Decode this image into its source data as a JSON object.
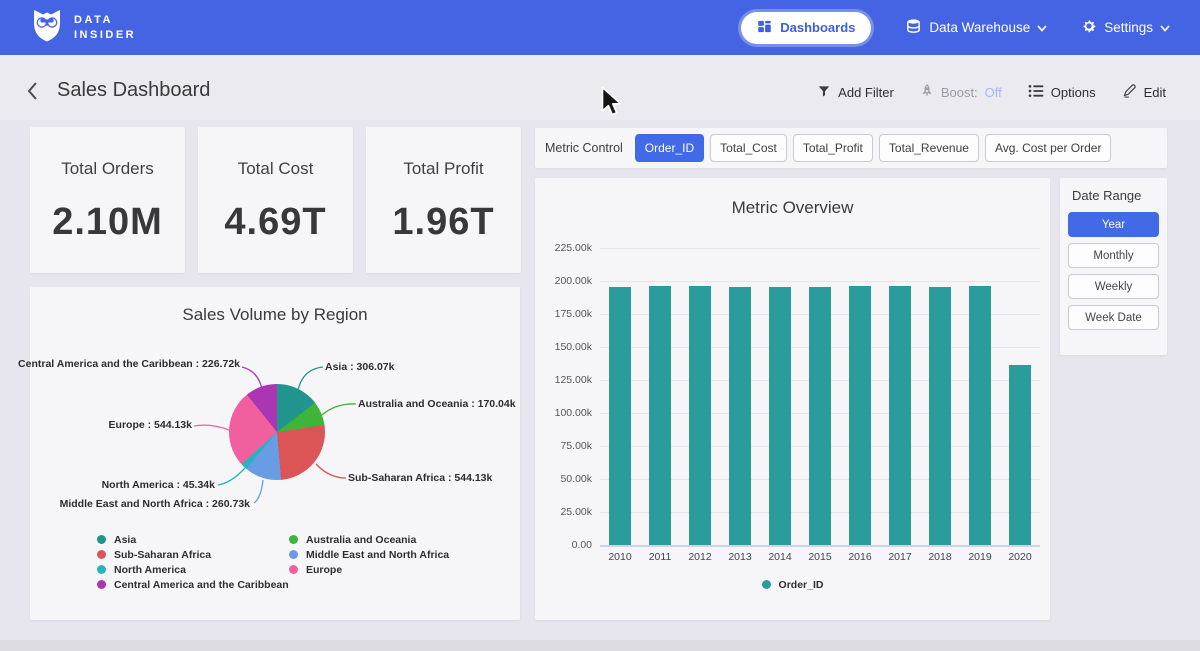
{
  "navbar": {
    "brand": {
      "line1": "DATA",
      "line2": "INSIDER"
    },
    "dashboards_label": "Dashboards",
    "data_warehouse_label": "Data Warehouse",
    "settings_label": "Settings"
  },
  "header": {
    "title": "Sales Dashboard",
    "actions": {
      "add_filter": "Add Filter",
      "boost_label": "Boost:",
      "boost_state": "Off",
      "options": "Options",
      "edit": "Edit"
    }
  },
  "kpis": [
    {
      "label": "Total Orders",
      "value": "2.10M"
    },
    {
      "label": "Total Cost",
      "value": "4.69T"
    },
    {
      "label": "Total Profit",
      "value": "1.96T"
    }
  ],
  "metric_control": {
    "label": "Metric Control",
    "chips": [
      {
        "label": "Order_ID",
        "selected": true
      },
      {
        "label": "Total_Cost",
        "selected": false
      },
      {
        "label": "Total_Profit",
        "selected": false
      },
      {
        "label": "Total_Revenue",
        "selected": false
      },
      {
        "label": "Avg. Cost per Order",
        "selected": false
      }
    ]
  },
  "date_range": {
    "label": "Date Range",
    "options": [
      {
        "label": "Year",
        "selected": true
      },
      {
        "label": "Monthly",
        "selected": false
      },
      {
        "label": "Weekly",
        "selected": false
      },
      {
        "label": "Week Date",
        "selected": false
      }
    ]
  },
  "colors": {
    "navbar_blue": "#4464e4",
    "accent_blue": "#4169e8",
    "bar_teal": "#2a9c9b",
    "boost_off": "#a9b6f2"
  },
  "chart_data": [
    {
      "type": "pie",
      "title": "Sales Volume by Region",
      "unit": "k",
      "slices": [
        {
          "label": "Asia",
          "value": 306.07,
          "display": "Asia : 306.07k",
          "color": "#1f958d"
        },
        {
          "label": "Australia and Oceania",
          "value": 170.04,
          "display": "Australia and Oceania : 170.04k",
          "color": "#3eb439"
        },
        {
          "label": "Sub-Saharan Africa",
          "value": 544.13,
          "display": "Sub-Saharan Africa : 544.13k",
          "color": "#dc5556"
        },
        {
          "label": "Middle East and North Africa",
          "value": 260.73,
          "display": "Middle East and North Africa : 260.73k",
          "color": "#689de4"
        },
        {
          "label": "North America",
          "value": 45.34,
          "display": "North America : 45.34k",
          "color": "#27b3c1"
        },
        {
          "label": "Europe",
          "value": 544.13,
          "display": "Europe : 544.13k",
          "color": "#f25f9e"
        },
        {
          "label": "Central America and the Caribbean",
          "value": 226.72,
          "display": "Central America and the Caribbean : 226.72k",
          "color": "#aa36b3"
        }
      ],
      "legend_columns": [
        [
          0,
          2,
          4,
          6
        ],
        [
          1,
          3,
          5
        ]
      ]
    },
    {
      "type": "bar",
      "title": "Metric Overview",
      "categories": [
        "2010",
        "2011",
        "2012",
        "2013",
        "2014",
        "2015",
        "2016",
        "2017",
        "2018",
        "2019",
        "2020"
      ],
      "values": [
        195.8,
        195.9,
        196.6,
        195.8,
        195.7,
        195.7,
        196.5,
        195.9,
        195.8,
        195.9,
        136.4
      ],
      "unit": "k",
      "ylim": [
        0,
        225
      ],
      "ytick_step": 25,
      "ytick_labels": [
        "0.00",
        "25.00k",
        "50.00k",
        "75.00k",
        "100.00k",
        "125.00k",
        "150.00k",
        "175.00k",
        "200.00k",
        "225.00k"
      ],
      "grid": true,
      "legend": [
        {
          "label": "Order_ID",
          "color": "#2a9c9b"
        }
      ],
      "legend_position": "bottom"
    }
  ]
}
